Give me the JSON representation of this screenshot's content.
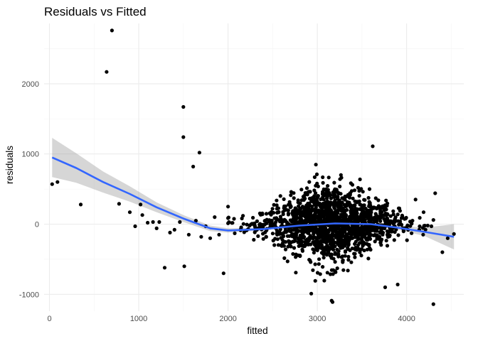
{
  "chart_data": {
    "type": "scatter",
    "title": "Residuals vs Fitted",
    "xlabel": "fitted",
    "ylabel": "residuals",
    "xlim": [
      -60,
      4640
    ],
    "ylim": [
      -1240,
      2860
    ],
    "x_ticks": [
      0,
      1000,
      2000,
      3000,
      4000
    ],
    "x_tick_labels": [
      "0",
      "1000",
      "2000",
      "3000",
      "4000"
    ],
    "y_ticks": [
      -1000,
      0,
      1000,
      2000
    ],
    "y_tick_labels": [
      "-1000",
      "0",
      "1000",
      "2000"
    ],
    "grid": true,
    "colors": {
      "points": "#000000",
      "smooth_line": "#3366FF",
      "confidence_band": "#999999",
      "grid_major": "#ebebeb",
      "grid_minor": "#f5f5f5"
    },
    "outliers": [
      {
        "x": 30,
        "y": 570
      },
      {
        "x": 90,
        "y": 600
      },
      {
        "x": 350,
        "y": 280
      },
      {
        "x": 640,
        "y": 2170
      },
      {
        "x": 700,
        "y": 2760
      },
      {
        "x": 780,
        "y": 290
      },
      {
        "x": 900,
        "y": 170
      },
      {
        "x": 960,
        "y": -30
      },
      {
        "x": 1020,
        "y": 280
      },
      {
        "x": 1040,
        "y": 130
      },
      {
        "x": 1100,
        "y": 20
      },
      {
        "x": 1160,
        "y": 30
      },
      {
        "x": 1200,
        "y": -60
      },
      {
        "x": 1230,
        "y": 30
      },
      {
        "x": 1290,
        "y": -620
      },
      {
        "x": 1350,
        "y": -120
      },
      {
        "x": 1400,
        "y": -80
      },
      {
        "x": 1460,
        "y": 30
      },
      {
        "x": 1500,
        "y": 1670
      },
      {
        "x": 1500,
        "y": 1240
      },
      {
        "x": 1510,
        "y": -600
      },
      {
        "x": 1560,
        "y": -150
      },
      {
        "x": 1610,
        "y": 820
      },
      {
        "x": 1640,
        "y": 50
      },
      {
        "x": 1680,
        "y": 1020
      },
      {
        "x": 1700,
        "y": -180
      },
      {
        "x": 1750,
        "y": -30
      },
      {
        "x": 1800,
        "y": -200
      },
      {
        "x": 1850,
        "y": 100
      },
      {
        "x": 1900,
        "y": -150
      },
      {
        "x": 1950,
        "y": -700
      },
      {
        "x": 2000,
        "y": 250
      },
      {
        "x": 3160,
        "y": -1090
      },
      {
        "x": 3170,
        "y": -1110
      },
      {
        "x": 3620,
        "y": 1110
      },
      {
        "x": 3760,
        "y": -900
      },
      {
        "x": 3900,
        "y": -860
      },
      {
        "x": 4100,
        "y": 350
      },
      {
        "x": 4190,
        "y": 170
      },
      {
        "x": 4300,
        "y": -1140
      },
      {
        "x": 4320,
        "y": 440
      },
      {
        "x": 4400,
        "y": -400
      },
      {
        "x": 4460,
        "y": -200
      },
      {
        "x": 4530,
        "y": -140
      }
    ],
    "cluster": {
      "description_count": 1600,
      "x_mean": 3150,
      "x_sd": 380,
      "x_range": [
        2000,
        4300
      ],
      "y_sd": 300,
      "y_range": [
        -1000,
        1000
      ]
    },
    "smooth": {
      "method": "loess",
      "points": [
        {
          "x": 30,
          "y": 950,
          "lo": 670,
          "hi": 1230
        },
        {
          "x": 300,
          "y": 800,
          "lo": 590,
          "hi": 1010
        },
        {
          "x": 600,
          "y": 600,
          "lo": 450,
          "hi": 750
        },
        {
          "x": 900,
          "y": 430,
          "lo": 320,
          "hi": 540
        },
        {
          "x": 1200,
          "y": 240,
          "lo": 170,
          "hi": 310
        },
        {
          "x": 1500,
          "y": 80,
          "lo": 30,
          "hi": 130
        },
        {
          "x": 1800,
          "y": -60,
          "lo": -100,
          "hi": -20
        },
        {
          "x": 2000,
          "y": -90,
          "lo": -120,
          "hi": -60
        },
        {
          "x": 2400,
          "y": -70,
          "lo": -90,
          "hi": -50
        },
        {
          "x": 2800,
          "y": -20,
          "lo": -35,
          "hi": -5
        },
        {
          "x": 3200,
          "y": 10,
          "lo": -5,
          "hi": 25
        },
        {
          "x": 3600,
          "y": 0,
          "lo": -20,
          "hi": 20
        },
        {
          "x": 3900,
          "y": -50,
          "lo": -80,
          "hi": -20
        },
        {
          "x": 4200,
          "y": -110,
          "lo": -170,
          "hi": -50
        },
        {
          "x": 4530,
          "y": -180,
          "lo": -360,
          "hi": 0
        }
      ]
    }
  }
}
